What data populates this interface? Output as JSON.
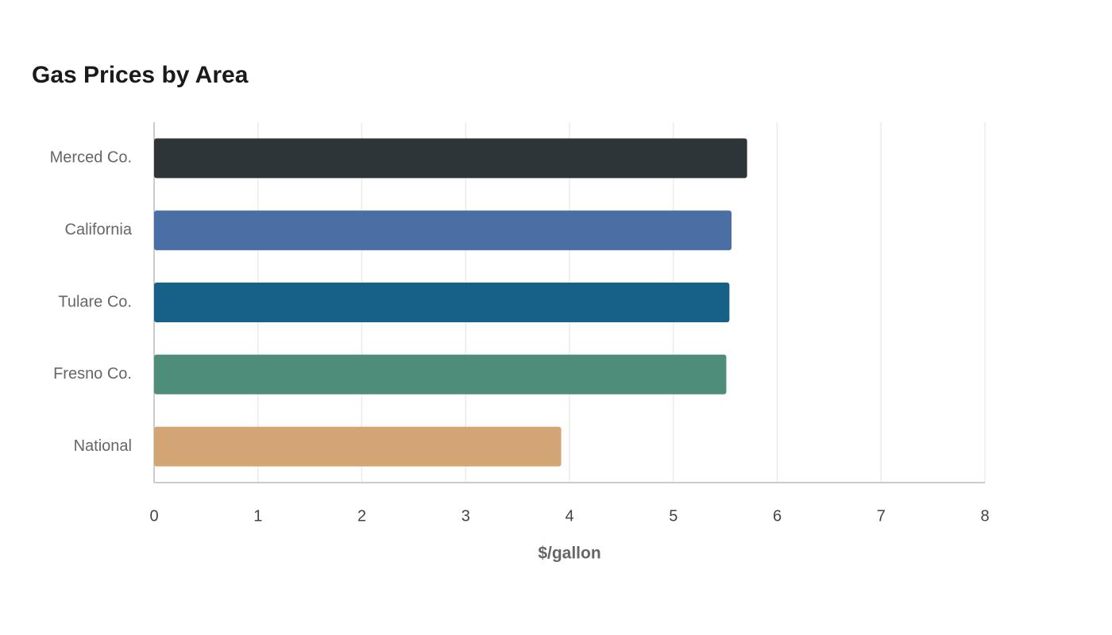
{
  "chart_data": {
    "type": "bar",
    "orientation": "horizontal",
    "title": "Gas Prices by Area",
    "categories": [
      "Merced Co.",
      "California",
      "Tulare Co.",
      "Fresno Co.",
      "National"
    ],
    "values": [
      5.71,
      5.56,
      5.54,
      5.51,
      3.92
    ],
    "colors": [
      "#2e3538",
      "#4a6fa5",
      "#176087",
      "#4f8d7b",
      "#d4a574"
    ],
    "xlabel": "$/gallon",
    "xlim": [
      0,
      8
    ],
    "xticks": [
      0,
      1,
      2,
      3,
      4,
      5,
      6,
      7,
      8
    ],
    "grid": true
  }
}
